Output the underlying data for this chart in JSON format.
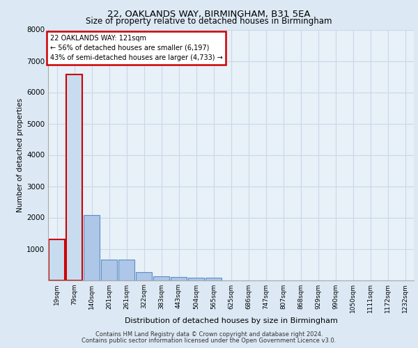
{
  "title1": "22, OAKLANDS WAY, BIRMINGHAM, B31 5EA",
  "title2": "Size of property relative to detached houses in Birmingham",
  "xlabel": "Distribution of detached houses by size in Birmingham",
  "ylabel": "Number of detached properties",
  "bin_labels": [
    "19sqm",
    "79sqm",
    "140sqm",
    "201sqm",
    "261sqm",
    "322sqm",
    "383sqm",
    "443sqm",
    "504sqm",
    "565sqm",
    "625sqm",
    "686sqm",
    "747sqm",
    "807sqm",
    "868sqm",
    "929sqm",
    "990sqm",
    "1050sqm",
    "1111sqm",
    "1172sqm",
    "1232sqm"
  ],
  "bar_heights": [
    1310,
    6560,
    2080,
    650,
    650,
    250,
    130,
    110,
    70,
    70,
    0,
    0,
    0,
    0,
    0,
    0,
    0,
    0,
    0,
    0,
    0
  ],
  "bar_color": "#aec6e8",
  "bar_edge_color": "#5a8fc2",
  "highlight_bar_indices": [
    0,
    1
  ],
  "highlight_bar_color": "#c8dcf0",
  "highlight_bar_edge_color": "#cc0000",
  "property_label": "22 OAKLANDS WAY: 121sqm",
  "annotation_line1": "← 56% of detached houses are smaller (6,197)",
  "annotation_line2": "43% of semi-detached houses are larger (4,733) →",
  "annotation_box_color": "#ffffff",
  "annotation_box_edge_color": "#cc0000",
  "ylim": [
    0,
    8000
  ],
  "yticks": [
    0,
    1000,
    2000,
    3000,
    4000,
    5000,
    6000,
    7000,
    8000
  ],
  "grid_color": "#c8d8e8",
  "background_color": "#dce9f5",
  "plot_bg_color": "#e8f0f8",
  "footer1": "Contains HM Land Registry data © Crown copyright and database right 2024.",
  "footer2": "Contains public sector information licensed under the Open Government Licence v3.0."
}
